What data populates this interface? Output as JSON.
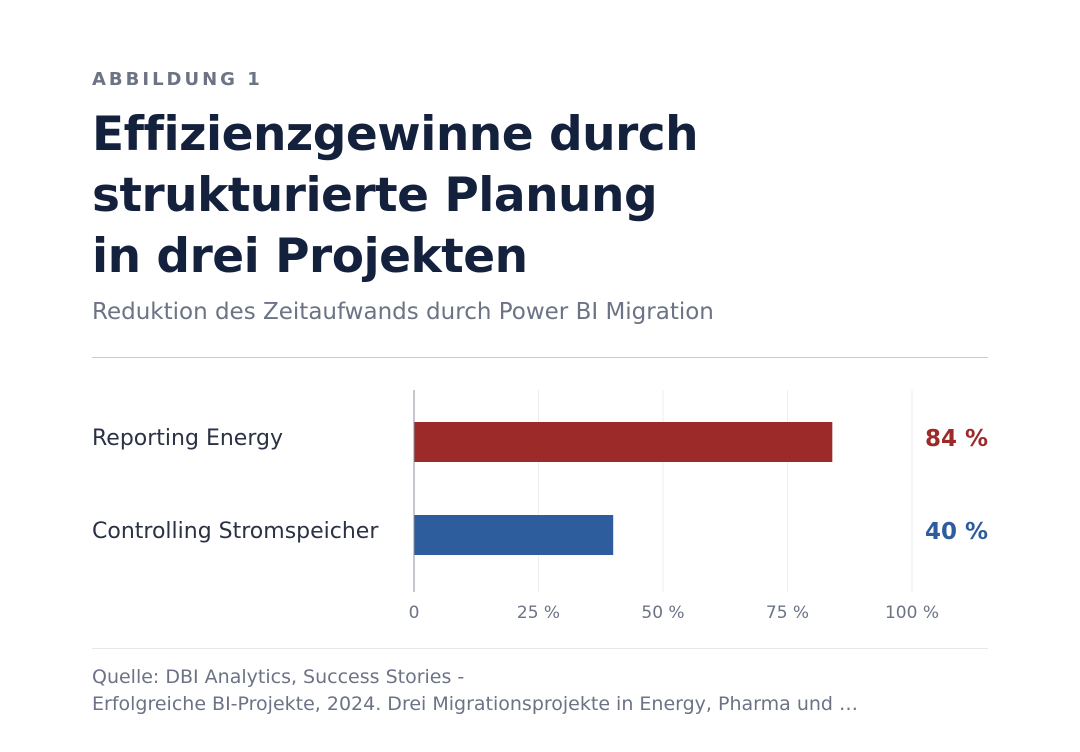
{
  "figure": {
    "eyebrow": "ABBILDUNG 1",
    "title_lines": [
      "Effizienzgewinne durch",
      "strukturierte Planung",
      "in drei Projekten"
    ],
    "subtitle": "Reduktion des Zeitaufwands durch Power BI Migration",
    "source_lines": [
      "Quelle: DBI Analytics, Success Stories -",
      "Erfolgreiche BI-Projekte, 2024. Drei Migrationsprojekte in Energy, Pharma und …"
    ]
  },
  "chart_data": {
    "type": "bar",
    "orientation": "horizontal",
    "categories": [
      "Reporting Energy",
      "Controlling Stromspeicher"
    ],
    "values": [
      84,
      40
    ],
    "value_labels": [
      "84 %",
      "40 %"
    ],
    "colors": [
      "#9b2a28",
      "#2e5d9e"
    ],
    "xlim": [
      0,
      100
    ],
    "xticks": [
      0,
      25,
      50,
      75,
      100
    ],
    "xtick_labels": [
      "0",
      "25 %",
      "50 %",
      "75 %",
      "100 %"
    ],
    "grid": true
  }
}
